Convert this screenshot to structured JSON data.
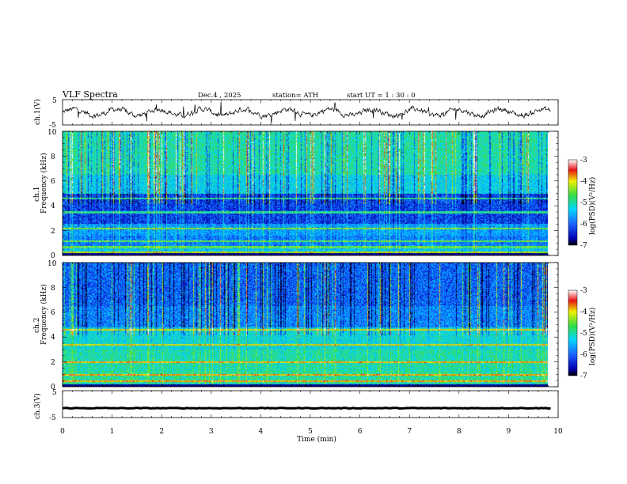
{
  "header": {
    "title": "VLF  Spectra",
    "date": "Dec.4  , 2025",
    "station": "station= ATH",
    "start": "start  UT  =   1  : 30 : 0"
  },
  "chart_data": [
    {
      "type": "line",
      "panel": "ch1-waveform",
      "ylabel": "ch.1(V)",
      "ylim": [
        -5,
        5
      ],
      "y_ticks": [
        "5",
        "-5"
      ],
      "xlim": [
        0,
        10
      ],
      "series": [
        {
          "values": "noisy trace near 0 V with spikes"
        }
      ]
    },
    {
      "type": "heatmap",
      "panel": "ch1-spectrogram",
      "ylabel_lines": [
        "ch.1",
        "Frequency  (kHz)"
      ],
      "ylim": [
        0,
        10
      ],
      "y_ticks": [
        "0",
        "2",
        "4",
        "6",
        "8",
        "10"
      ],
      "xlim": [
        0,
        9.85
      ],
      "colorbar": {
        "label": "log(PSD)(V²/Hz)",
        "range": [
          -7,
          -3
        ],
        "ticks": [
          "-3",
          "-4",
          "-5",
          "-6",
          "-7"
        ]
      },
      "bands_khz": [
        0.3,
        0.7,
        1.2,
        2.2,
        3.5,
        4.6
      ]
    },
    {
      "type": "heatmap",
      "panel": "ch2-spectrogram",
      "ylabel_lines": [
        "ch.2",
        "Frequency  (kHz)"
      ],
      "ylim": [
        0,
        10
      ],
      "y_ticks": [
        "0",
        "2",
        "4",
        "6",
        "8",
        "10"
      ],
      "xlim": [
        0,
        9.85
      ],
      "colorbar": {
        "label": "log(PSD)(V²/Hz)",
        "range": [
          -7,
          -3
        ],
        "ticks": [
          "-3",
          "-4",
          "-5",
          "-6",
          "-7"
        ]
      },
      "bands_khz": [
        0.5,
        1.0,
        2.0,
        3.4,
        4.6
      ]
    },
    {
      "type": "line",
      "panel": "ch3-waveform",
      "ylabel": "ch.3(V)",
      "ylim": [
        -5,
        5
      ],
      "y_ticks": [
        "5",
        "-5"
      ],
      "xlim": [
        0,
        10
      ],
      "series": [
        {
          "values": "flat trace near -1.5 V"
        }
      ]
    }
  ],
  "x_axis": {
    "label": "Time  (min)",
    "ticks": [
      "0",
      "1",
      "2",
      "3",
      "4",
      "5",
      "6",
      "7",
      "8",
      "9",
      "10"
    ]
  },
  "colors": {
    "deep_blue": "#0000b8",
    "blue": "#1e5aff",
    "cyan": "#00d7ff",
    "green": "#32dc46",
    "yellow": "#f0f000",
    "red": "#e61414"
  }
}
